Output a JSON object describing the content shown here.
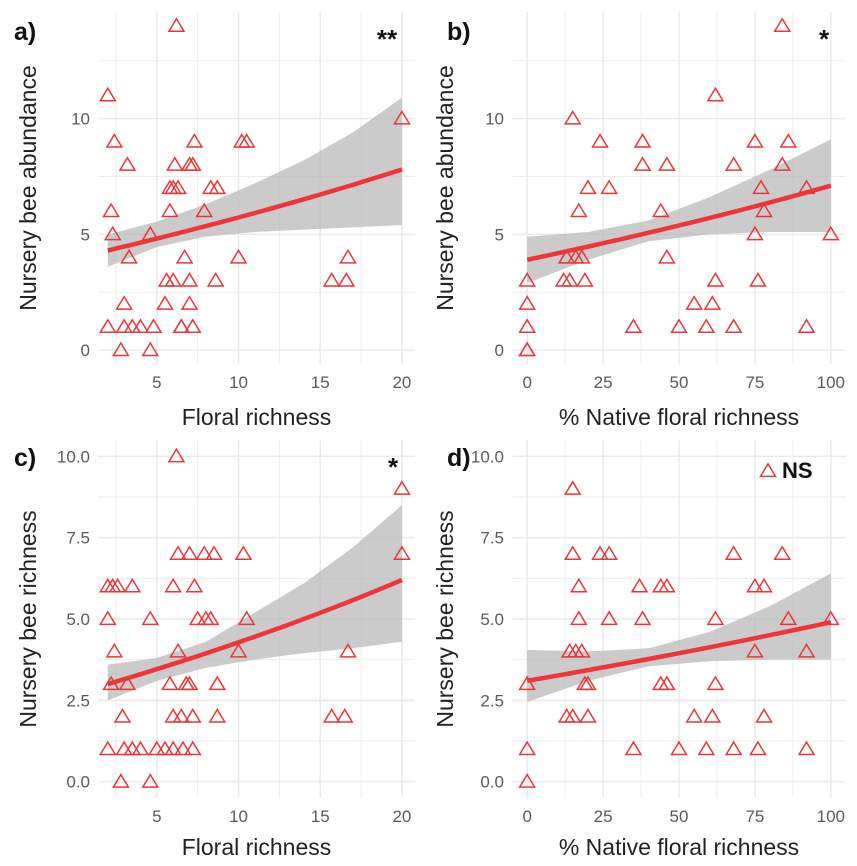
{
  "figure": {
    "colors": {
      "point": "#e8373a",
      "line": "#ee3538",
      "band": "#b9b9b9",
      "grid": "#e9e9e9",
      "tick": "#5a5a5a",
      "axis_title": "#222222"
    }
  },
  "chart_data": [
    {
      "panel_label": "a)",
      "type": "scatter",
      "xlabel": "Floral richness",
      "ylabel": "Nursery bee abundance",
      "significance": "**",
      "xlim": [
        1.4,
        20.8
      ],
      "ylim": [
        -0.6,
        14.6
      ],
      "xticks": [
        5,
        10,
        15,
        20
      ],
      "yticks": [
        0,
        5,
        10
      ],
      "ytick_labels": [
        "0",
        "5",
        "10"
      ],
      "points": [
        [
          2,
          11
        ],
        [
          2.2,
          6
        ],
        [
          2.3,
          5
        ],
        [
          2.4,
          9
        ],
        [
          2,
          1
        ],
        [
          2.8,
          0
        ],
        [
          3.2,
          8
        ],
        [
          3.3,
          4
        ],
        [
          3,
          2
        ],
        [
          3,
          1
        ],
        [
          3.5,
          1
        ],
        [
          4,
          1
        ],
        [
          4.6,
          5
        ],
        [
          4.6,
          0
        ],
        [
          4.8,
          1
        ],
        [
          5.5,
          2
        ],
        [
          5.6,
          3
        ],
        [
          5.8,
          6
        ],
        [
          5.8,
          7
        ],
        [
          6,
          3
        ],
        [
          6,
          7
        ],
        [
          6.1,
          8
        ],
        [
          6.2,
          14
        ],
        [
          6.3,
          7
        ],
        [
          6.5,
          1
        ],
        [
          6.5,
          1
        ],
        [
          6.7,
          4
        ],
        [
          7,
          8
        ],
        [
          7,
          3
        ],
        [
          7.2,
          8
        ],
        [
          7,
          2
        ],
        [
          7.2,
          1
        ],
        [
          7.3,
          9
        ],
        [
          7.9,
          6
        ],
        [
          8.3,
          7
        ],
        [
          8.6,
          3
        ],
        [
          8.7,
          7
        ],
        [
          10,
          4
        ],
        [
          10.2,
          9
        ],
        [
          10.5,
          9
        ],
        [
          15.7,
          3
        ],
        [
          16.6,
          3
        ],
        [
          16.7,
          4
        ],
        [
          20,
          10
        ]
      ],
      "fit": {
        "x": [
          2,
          20
        ],
        "y": [
          4.3,
          7.8
        ]
      },
      "band": {
        "x": [
          2,
          5,
          8,
          11,
          14,
          17,
          20
        ],
        "lower": [
          3.6,
          4.45,
          4.9,
          5.1,
          5.2,
          5.3,
          5.4
        ],
        "upper": [
          5.0,
          5.55,
          6.3,
          7.2,
          8.2,
          9.4,
          10.9
        ]
      }
    },
    {
      "panel_label": "b)",
      "type": "scatter",
      "xlabel": "% Native floral richness",
      "ylabel": "Nursery bee abundance",
      "significance": "*",
      "xlim": [
        -5,
        105
      ],
      "ylim": [
        -0.6,
        14.6
      ],
      "xticks": [
        0,
        25,
        50,
        75,
        100
      ],
      "yticks": [
        0,
        5,
        10
      ],
      "ytick_labels": [
        "0",
        "5",
        "10"
      ],
      "points": [
        [
          0,
          3
        ],
        [
          0,
          2
        ],
        [
          0,
          1
        ],
        [
          0,
          0
        ],
        [
          0,
          0
        ],
        [
          12,
          3
        ],
        [
          13,
          4
        ],
        [
          14,
          3
        ],
        [
          15,
          10
        ],
        [
          16,
          4
        ],
        [
          17,
          6
        ],
        [
          18,
          4
        ],
        [
          19,
          3
        ],
        [
          20,
          7
        ],
        [
          24,
          9
        ],
        [
          27,
          7
        ],
        [
          35,
          1
        ],
        [
          38,
          9
        ],
        [
          38,
          8
        ],
        [
          44,
          6
        ],
        [
          46,
          4
        ],
        [
          46,
          8
        ],
        [
          50,
          1
        ],
        [
          55,
          2
        ],
        [
          59,
          1
        ],
        [
          61,
          2
        ],
        [
          62,
          3
        ],
        [
          62,
          11
        ],
        [
          68,
          1
        ],
        [
          68,
          8
        ],
        [
          75,
          5
        ],
        [
          75,
          9
        ],
        [
          76,
          3
        ],
        [
          77,
          7
        ],
        [
          78,
          6
        ],
        [
          84,
          14
        ],
        [
          84,
          8
        ],
        [
          86,
          9
        ],
        [
          92,
          7
        ],
        [
          92,
          1
        ],
        [
          100,
          5
        ]
      ],
      "fit": {
        "x": [
          0,
          100
        ],
        "y": [
          3.9,
          7.1
        ]
      },
      "band": {
        "x": [
          0,
          20,
          40,
          60,
          80,
          100
        ],
        "lower": [
          2.9,
          3.9,
          4.7,
          5.0,
          5.1,
          5.1
        ],
        "upper": [
          4.9,
          5.1,
          5.6,
          6.6,
          7.8,
          9.1
        ]
      }
    },
    {
      "panel_label": "c)",
      "type": "scatter",
      "xlabel": "Floral richness",
      "ylabel": "Nursery bee richness",
      "significance": "*",
      "xlim": [
        1.4,
        20.8
      ],
      "ylim": [
        -0.5,
        10.5
      ],
      "xticks": [
        5,
        10,
        15,
        20
      ],
      "yticks": [
        0,
        2.5,
        5,
        7.5,
        10
      ],
      "ytick_labels": [
        "0.0",
        "2.5",
        "5.0",
        "7.5",
        "10.0"
      ],
      "points": [
        [
          2,
          6
        ],
        [
          2,
          5
        ],
        [
          2,
          1
        ],
        [
          2.2,
          3
        ],
        [
          2.3,
          6
        ],
        [
          2.4,
          4
        ],
        [
          2.6,
          6
        ],
        [
          2.8,
          0
        ],
        [
          2.9,
          2
        ],
        [
          3,
          1
        ],
        [
          3.2,
          3
        ],
        [
          3.5,
          1
        ],
        [
          3.5,
          6
        ],
        [
          4,
          1
        ],
        [
          4.6,
          5
        ],
        [
          4.6,
          0
        ],
        [
          5,
          1
        ],
        [
          5.5,
          1
        ],
        [
          5.8,
          3
        ],
        [
          6,
          6
        ],
        [
          6,
          2
        ],
        [
          6,
          1
        ],
        [
          6.2,
          10
        ],
        [
          6.3,
          4
        ],
        [
          6.3,
          7
        ],
        [
          6.5,
          2
        ],
        [
          6.6,
          1
        ],
        [
          6.8,
          3
        ],
        [
          7,
          7
        ],
        [
          7,
          3
        ],
        [
          7.2,
          1
        ],
        [
          7.2,
          2
        ],
        [
          7.3,
          6
        ],
        [
          7.5,
          5
        ],
        [
          7.9,
          7
        ],
        [
          8,
          5
        ],
        [
          8.3,
          5
        ],
        [
          8.5,
          7
        ],
        [
          8.7,
          3
        ],
        [
          8.7,
          2
        ],
        [
          10,
          4
        ],
        [
          10.3,
          7
        ],
        [
          10.5,
          5
        ],
        [
          15.7,
          2
        ],
        [
          16.5,
          2
        ],
        [
          16.7,
          4
        ],
        [
          20,
          9
        ],
        [
          20,
          7
        ]
      ],
      "fit": {
        "x": [
          2,
          20
        ],
        "y": [
          3.0,
          6.2
        ]
      },
      "band": {
        "x": [
          2,
          5,
          8,
          11,
          14,
          17,
          20
        ],
        "lower": [
          2.5,
          3.1,
          3.5,
          3.75,
          3.95,
          4.1,
          4.3
        ],
        "upper": [
          3.6,
          3.8,
          4.3,
          5.2,
          6.1,
          7.2,
          8.5
        ]
      }
    },
    {
      "panel_label": "d)",
      "type": "scatter",
      "xlabel": "% Native floral richness",
      "ylabel": "Nursery bee richness",
      "significance": "NS",
      "legend_marker": true,
      "xlim": [
        -5,
        105
      ],
      "ylim": [
        -0.5,
        10.5
      ],
      "xticks": [
        0,
        25,
        50,
        75,
        100
      ],
      "yticks": [
        0,
        2.5,
        5,
        7.5,
        10
      ],
      "ytick_labels": [
        "0.0",
        "2.5",
        "5.0",
        "7.5",
        "10.0"
      ],
      "points": [
        [
          0,
          3
        ],
        [
          0,
          1
        ],
        [
          0,
          0
        ],
        [
          13,
          2
        ],
        [
          14,
          4
        ],
        [
          15,
          2
        ],
        [
          15,
          7
        ],
        [
          15,
          9
        ],
        [
          16,
          4
        ],
        [
          17,
          6
        ],
        [
          17,
          5
        ],
        [
          18,
          4
        ],
        [
          19,
          3
        ],
        [
          20,
          3
        ],
        [
          20,
          2
        ],
        [
          24,
          7
        ],
        [
          27,
          7
        ],
        [
          27,
          5
        ],
        [
          35,
          1
        ],
        [
          37,
          6
        ],
        [
          38,
          5
        ],
        [
          44,
          3
        ],
        [
          44,
          6
        ],
        [
          46,
          3
        ],
        [
          46,
          6
        ],
        [
          50,
          1
        ],
        [
          55,
          2
        ],
        [
          59,
          1
        ],
        [
          61,
          2
        ],
        [
          62,
          3
        ],
        [
          62,
          5
        ],
        [
          68,
          1
        ],
        [
          68,
          7
        ],
        [
          75,
          4
        ],
        [
          75,
          6
        ],
        [
          76,
          1
        ],
        [
          78,
          2
        ],
        [
          78,
          6
        ],
        [
          84,
          7
        ],
        [
          86,
          5
        ],
        [
          92,
          4
        ],
        [
          92,
          1
        ],
        [
          100,
          5
        ]
      ],
      "fit": {
        "x": [
          0,
          100
        ],
        "y": [
          3.1,
          4.9
        ]
      },
      "band": {
        "x": [
          0,
          20,
          40,
          60,
          80,
          100
        ],
        "lower": [
          2.45,
          3.1,
          3.55,
          3.7,
          3.75,
          3.75
        ],
        "upper": [
          4.05,
          4.0,
          4.1,
          4.6,
          5.4,
          6.4
        ]
      }
    }
  ]
}
